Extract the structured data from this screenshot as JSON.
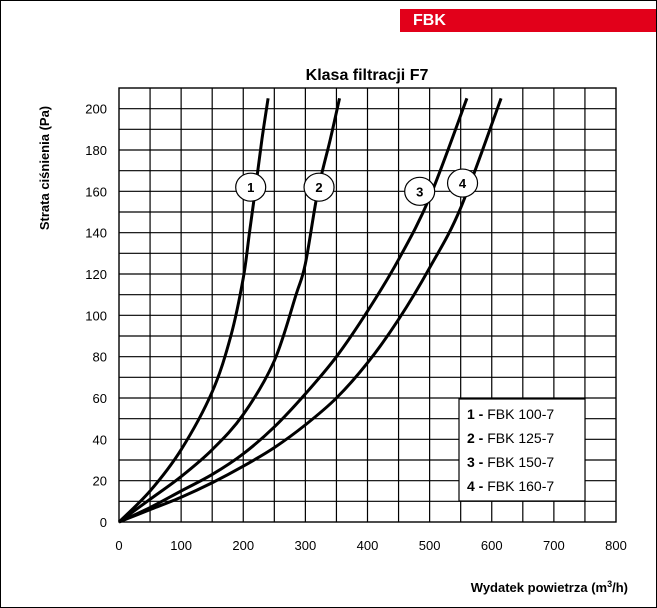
{
  "header": {
    "tag": "FBK",
    "tag_color": "#e2001a"
  },
  "chart_data": {
    "type": "line",
    "title": "Klasa filtracji F7",
    "ylabel": "Strata ciśnienia (Pa)",
    "xlabel_main": "Wydatek powietrza (m",
    "xlabel_sup": "3",
    "xlabel_end": "/h)",
    "xlim": [
      0,
      800
    ],
    "ylim": [
      0,
      210
    ],
    "x_ticks": [
      0,
      100,
      200,
      300,
      400,
      500,
      600,
      700,
      800
    ],
    "y_ticks": [
      0,
      20,
      40,
      60,
      80,
      100,
      120,
      140,
      160,
      180,
      200
    ],
    "grid": true,
    "legend_position": "bottom-right",
    "series": [
      {
        "name": "FBK 100-7",
        "number": "1",
        "label_prefix": "1 -",
        "points": [
          [
            0,
            0
          ],
          [
            50,
            15
          ],
          [
            100,
            35
          ],
          [
            150,
            63
          ],
          [
            180,
            90
          ],
          [
            200,
            118
          ],
          [
            210,
            140
          ],
          [
            220,
            162
          ],
          [
            230,
            185
          ],
          [
            240,
            205
          ]
        ]
      },
      {
        "name": "FBK 125-7",
        "number": "2",
        "label_prefix": "2 -",
        "points": [
          [
            0,
            0
          ],
          [
            50,
            11
          ],
          [
            100,
            22
          ],
          [
            150,
            35
          ],
          [
            200,
            52
          ],
          [
            250,
            78
          ],
          [
            285,
            110
          ],
          [
            300,
            125
          ],
          [
            320,
            160
          ],
          [
            340,
            185
          ],
          [
            355,
            205
          ]
        ]
      },
      {
        "name": "FBK 150-7",
        "number": "3",
        "label_prefix": "3 -",
        "points": [
          [
            0,
            0
          ],
          [
            50,
            7
          ],
          [
            100,
            15
          ],
          [
            150,
            23
          ],
          [
            200,
            33
          ],
          [
            250,
            46
          ],
          [
            300,
            62
          ],
          [
            350,
            80
          ],
          [
            400,
            102
          ],
          [
            450,
            127
          ],
          [
            500,
            157
          ],
          [
            560,
            205
          ]
        ]
      },
      {
        "name": "FBK 160-7",
        "number": "4",
        "label_prefix": "4 -",
        "points": [
          [
            0,
            0
          ],
          [
            50,
            6
          ],
          [
            100,
            12
          ],
          [
            150,
            19
          ],
          [
            200,
            27
          ],
          [
            250,
            36
          ],
          [
            300,
            47
          ],
          [
            350,
            60
          ],
          [
            400,
            77
          ],
          [
            450,
            98
          ],
          [
            500,
            123
          ],
          [
            550,
            152
          ],
          [
            615,
            205
          ]
        ]
      }
    ],
    "curve_labels": [
      {
        "series": 0,
        "at": [
          212,
          162
        ]
      },
      {
        "series": 1,
        "at": [
          322,
          162
        ]
      },
      {
        "series": 2,
        "at": [
          484,
          160
        ]
      },
      {
        "series": 3,
        "at": [
          553,
          164
        ]
      }
    ]
  }
}
